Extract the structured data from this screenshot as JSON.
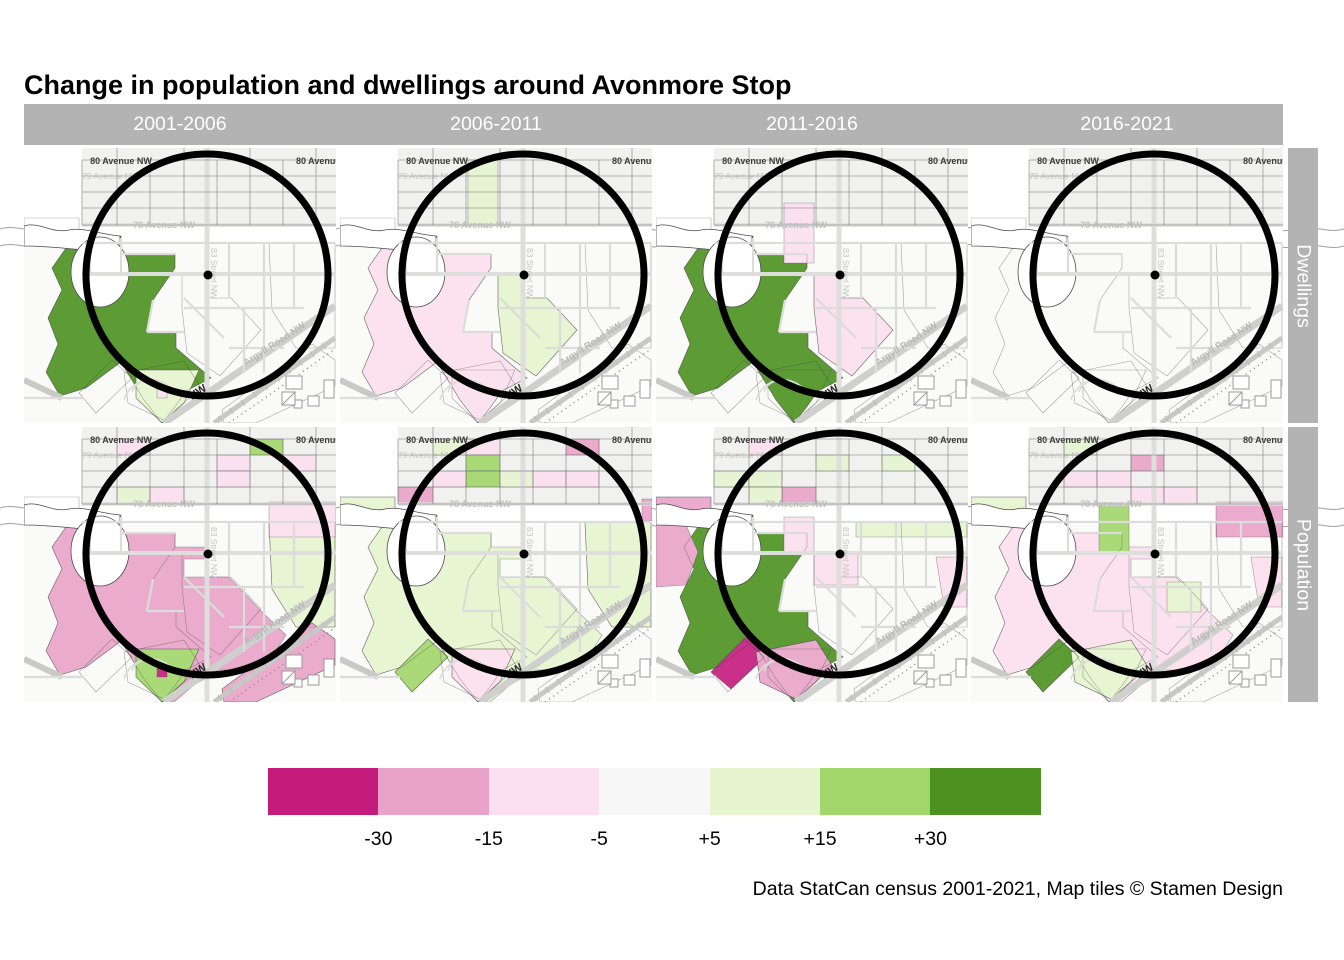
{
  "title": "Change in population and dwellings around Avonmore Stop",
  "caption": "Data StatCan census 2001-2021, Map tiles © Stamen Design",
  "facets": {
    "columns": [
      "2001-2006",
      "2006-2011",
      "2011-2016",
      "2016-2021"
    ],
    "rows": [
      "Dwellings",
      "Population"
    ]
  },
  "colors": {
    "strip_background": "#B3B3B3",
    "strip_text": "#FFFFFF",
    "circle": "#000000"
  },
  "legend": {
    "break_labels": [
      "-30",
      "-15",
      "-5",
      "+5",
      "+15",
      "+30"
    ],
    "colors": [
      "#C51B7D",
      "#E9A3C9",
      "#FDE0EF",
      "#F7F7F7",
      "#E6F5D0",
      "#A1D76A",
      "#4D9221"
    ]
  },
  "map": {
    "street_labels": {
      "ave80": "80 Avenue NW",
      "ave79": "79 Avenue NW",
      "ave78": "78 Avenue NW",
      "st83": "83 Street NW",
      "argyll": "Argyll Road NW",
      "argyll_fragment": "NW"
    }
  },
  "panels": [
    {
      "row": "Dwellings",
      "col": "2001-2006",
      "regions": [
        [
          "westLobe",
          "p30"
        ],
        [
          "southWedge",
          "p5"
        ],
        [
          "pinkDot",
          "m5"
        ]
      ],
      "cells": []
    },
    {
      "row": "Dwellings",
      "col": "2006-2011",
      "regions": [
        [
          "westLobe",
          "m5"
        ],
        [
          "topCol",
          "p5"
        ],
        [
          "eastCentral",
          "p5"
        ]
      ],
      "cells": []
    },
    {
      "row": "Dwellings",
      "col": "2011-2016",
      "regions": [
        [
          "westLobe",
          "p30"
        ],
        [
          "topColLow",
          "m5"
        ],
        [
          "eastCentral",
          "m5"
        ]
      ],
      "cells": []
    },
    {
      "row": "Dwellings",
      "col": "2016-2021",
      "regions": [],
      "cells": []
    },
    {
      "row": "Population",
      "col": "2001-2006",
      "regions": [
        [
          "westLobeWide",
          "m15"
        ],
        [
          "southWedge",
          "p15"
        ],
        [
          "pinkDot",
          "m30"
        ],
        [
          "eastSideGreen",
          "p5"
        ],
        [
          "diagBandSE",
          "m15"
        ],
        [
          "eastBandTR",
          "m5"
        ]
      ],
      "cells": [
        [
          1,
          0,
          "m5"
        ],
        [
          5,
          0,
          "p15"
        ],
        [
          4,
          1,
          "m5"
        ],
        [
          6,
          1,
          "m5"
        ],
        [
          4,
          2,
          "m5"
        ],
        [
          1,
          3,
          "p5"
        ],
        [
          2,
          3,
          "m5"
        ]
      ]
    },
    {
      "row": "Population",
      "col": "2006-2011",
      "regions": [
        [
          "westLobeWide",
          "p5"
        ],
        [
          "leftBand",
          "p5"
        ],
        [
          "greenPara",
          "p15"
        ],
        [
          "southWedge",
          "m5"
        ],
        [
          "eastSideGreen",
          "p5"
        ],
        [
          "edgeSliverR",
          "m15"
        ]
      ],
      "cells": [
        [
          1,
          0,
          "p5"
        ],
        [
          2,
          0,
          "m5"
        ],
        [
          5,
          0,
          "m15"
        ],
        [
          2,
          1,
          "p15"
        ],
        [
          2,
          2,
          "p15"
        ],
        [
          1,
          2,
          "m5"
        ],
        [
          3,
          2,
          "p5"
        ],
        [
          4,
          2,
          "m5"
        ],
        [
          5,
          2,
          "m5"
        ],
        [
          0,
          3,
          "m15"
        ]
      ]
    },
    {
      "row": "Population",
      "col": "2011-2016",
      "regions": [
        [
          "westLobe",
          "p30"
        ],
        [
          "leftBand",
          "m15"
        ],
        [
          "leftBlob",
          "m15"
        ],
        [
          "centerStrip",
          "m5"
        ],
        [
          "nearDotE",
          "m5"
        ],
        [
          "greenBandMid",
          "p5"
        ],
        [
          "eastMid",
          "m5"
        ],
        [
          "diagMagenta",
          "m30"
        ],
        [
          "southArc",
          "m15"
        ]
      ],
      "cells": [
        [
          1,
          0,
          "m5"
        ],
        [
          2,
          3,
          "m15"
        ],
        [
          0,
          2,
          "p5"
        ],
        [
          1,
          2,
          "p5"
        ],
        [
          1,
          3,
          "p5"
        ],
        [
          3,
          1,
          "p5"
        ],
        [
          5,
          1,
          "p5"
        ]
      ]
    },
    {
      "row": "Population",
      "col": "2016-2021",
      "regions": [
        [
          "westLobeWide",
          "m5"
        ],
        [
          "topColMid",
          "p15"
        ],
        [
          "leftBand",
          "p5"
        ],
        [
          "eastBandTR",
          "m15"
        ],
        [
          "eastMid",
          "m5"
        ],
        [
          "greenPara",
          "p30"
        ],
        [
          "southArc",
          "p5"
        ],
        [
          "seGreenCell",
          "p5"
        ]
      ],
      "cells": [
        [
          1,
          0,
          "p5"
        ],
        [
          3,
          1,
          "m15"
        ],
        [
          1,
          2,
          "m5"
        ],
        [
          2,
          2,
          "m5"
        ],
        [
          3,
          3,
          "m5"
        ],
        [
          4,
          3,
          "m5"
        ]
      ]
    }
  ]
}
